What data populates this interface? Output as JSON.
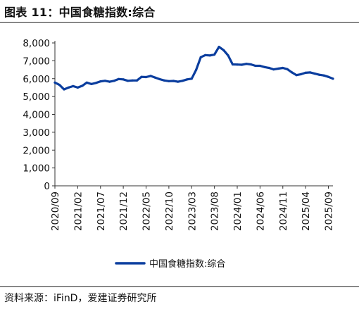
{
  "figure": {
    "title": "图表 11：中国食糖指数:综合",
    "source": "资料来源：iFinD，爱建证券研究所"
  },
  "chart_data": {
    "type": "line",
    "title": "中国食糖指数:综合",
    "xlabel": "",
    "ylabel": "",
    "ylim": [
      0,
      8000
    ],
    "yticks": [
      0,
      1000,
      2000,
      3000,
      4000,
      5000,
      6000,
      7000,
      8000
    ],
    "ytick_labels": [
      "0",
      "1,000",
      "2,000",
      "3,000",
      "4,000",
      "5,000",
      "6,000",
      "7,000",
      "8,000"
    ],
    "xticks": [
      "2020/09",
      "2021/02",
      "2021/07",
      "2021/12",
      "2022/05",
      "2022/10",
      "2023/03",
      "2023/08",
      "2024/01",
      "2024/06",
      "2024/11",
      "2025/04",
      "2025/09"
    ],
    "grid": false,
    "legend": "bottom",
    "color": "#0a3d9e",
    "series": [
      {
        "name": "中国食糖指数:综合",
        "x": [
          "2020/09",
          "2020/10",
          "2020/11",
          "2020/12",
          "2021/01",
          "2021/02",
          "2021/03",
          "2021/04",
          "2021/05",
          "2021/06",
          "2021/07",
          "2021/08",
          "2021/09",
          "2021/10",
          "2021/11",
          "2021/12",
          "2022/01",
          "2022/02",
          "2022/03",
          "2022/04",
          "2022/05",
          "2022/06",
          "2022/07",
          "2022/08",
          "2022/09",
          "2022/10",
          "2022/11",
          "2022/12",
          "2023/01",
          "2023/02",
          "2023/03",
          "2023/04",
          "2023/05",
          "2023/06",
          "2023/07",
          "2023/08",
          "2023/09",
          "2023/10",
          "2023/11",
          "2023/12",
          "2024/01",
          "2024/02",
          "2024/03",
          "2024/04",
          "2024/05",
          "2024/06",
          "2024/07",
          "2024/08",
          "2024/09",
          "2024/10",
          "2024/11",
          "2024/12",
          "2025/01",
          "2025/02",
          "2025/03",
          "2025/04",
          "2025/05",
          "2025/06",
          "2025/07",
          "2025/08",
          "2025/09",
          "2025/10"
        ],
        "values": [
          5780,
          5650,
          5400,
          5500,
          5580,
          5500,
          5600,
          5780,
          5700,
          5760,
          5850,
          5880,
          5830,
          5880,
          5980,
          5960,
          5880,
          5900,
          5900,
          6100,
          6090,
          6150,
          6060,
          5970,
          5900,
          5860,
          5870,
          5830,
          5880,
          5960,
          6000,
          6500,
          7200,
          7320,
          7300,
          7350,
          7780,
          7600,
          7300,
          6800,
          6790,
          6780,
          6830,
          6800,
          6720,
          6720,
          6650,
          6600,
          6520,
          6560,
          6600,
          6530,
          6350,
          6200,
          6250,
          6330,
          6350,
          6280,
          6220,
          6180,
          6100,
          6000
        ]
      }
    ]
  }
}
